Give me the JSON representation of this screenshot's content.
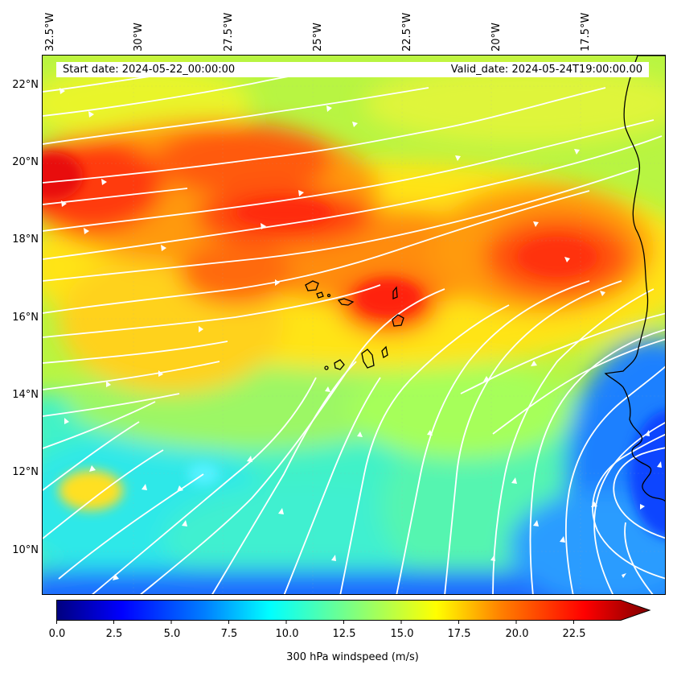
{
  "map": {
    "start_date": "Start date: 2024-05-22_00:00:00",
    "valid_date": "Valid_date: 2024-05-24T19:00:00.00",
    "lon_labels": [
      "32.5°W",
      "30°W",
      "27.5°W",
      "25°W",
      "22.5°W",
      "20°W",
      "17.5°W"
    ],
    "lat_labels": [
      "22°N",
      "20°N",
      "18°N",
      "16°N",
      "14°N",
      "12°N",
      "10°N"
    ],
    "variable": "300 hPa windspeed",
    "units": "m/s"
  },
  "colorbar": {
    "title": "300 hPa windspeed (m/s)",
    "ticks": [
      "0.0",
      "2.5",
      "5.0",
      "7.5",
      "10.0",
      "12.5",
      "15.0",
      "17.5",
      "20.0",
      "22.5"
    ],
    "min": 0,
    "max": 25,
    "extend": "max",
    "colormap": "jet",
    "colors": [
      "#00007f",
      "#0000ff",
      "#007fff",
      "#00ffff",
      "#7fff7f",
      "#ffff00",
      "#ff7f00",
      "#ff0000",
      "#7f0000"
    ]
  }
}
